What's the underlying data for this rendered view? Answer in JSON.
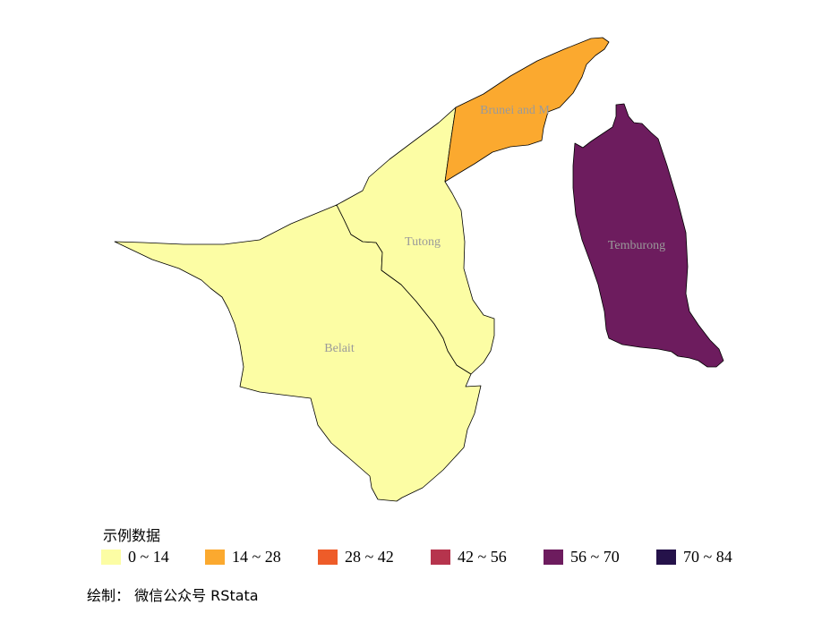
{
  "map": {
    "regions": [
      {
        "name": "Belait",
        "value_range": "0 ~ 14",
        "color": "#FCFDA4"
      },
      {
        "name": "Tutong",
        "value_range": "0 ~ 14",
        "color": "#FCFDA4"
      },
      {
        "name": "Brunei and M",
        "value_range": "14 ~ 28",
        "color": "#FBA92F"
      },
      {
        "name": "Temburong",
        "value_range": "56 ~ 70",
        "color": "#6D1C5E"
      }
    ]
  },
  "legend": {
    "title": "示例数据",
    "items": [
      {
        "label": "0 ~ 14",
        "color": "#FCFDA4"
      },
      {
        "label": "14 ~ 28",
        "color": "#FBA92F"
      },
      {
        "label": "28 ~ 42",
        "color": "#EE5C29"
      },
      {
        "label": "42 ~ 56",
        "color": "#B6344D"
      },
      {
        "label": "56 ~ 70",
        "color": "#6D1C5E"
      },
      {
        "label": "70 ~ 84",
        "color": "#25124A"
      }
    ]
  },
  "caption": "绘制： 微信公众号 RStata"
}
